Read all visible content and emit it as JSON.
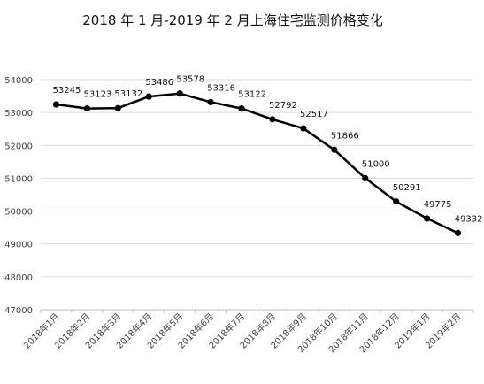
{
  "chart_data": {
    "type": "line",
    "title": "2018 年 1 月-2019 年 2 月上海住宅监测价格变化",
    "xlabel": "",
    "ylabel": "",
    "categories": [
      "2018年1月",
      "2018年2月",
      "2018年3月",
      "2018年4月",
      "2018年5月",
      "2018年6月",
      "2018年7月",
      "2018年8月",
      "2018年9月",
      "2018年10月",
      "2018年11月",
      "2018年12月",
      "2019年1月",
      "2019年2月"
    ],
    "series": [
      {
        "values": [
          53245,
          53123,
          53132,
          53486,
          53578,
          53316,
          53122,
          52792,
          52517,
          51866,
          51000,
          50291,
          49775,
          49332
        ]
      }
    ],
    "ylim": [
      47000,
      54000
    ],
    "yticks": [
      47000,
      48000,
      49000,
      50000,
      51000,
      52000,
      53000,
      54000
    ],
    "grid": true,
    "legend": "none",
    "colors": {
      "line": "#000000",
      "grid": "#d9d9d9",
      "axis": "#bfbfbf"
    }
  }
}
